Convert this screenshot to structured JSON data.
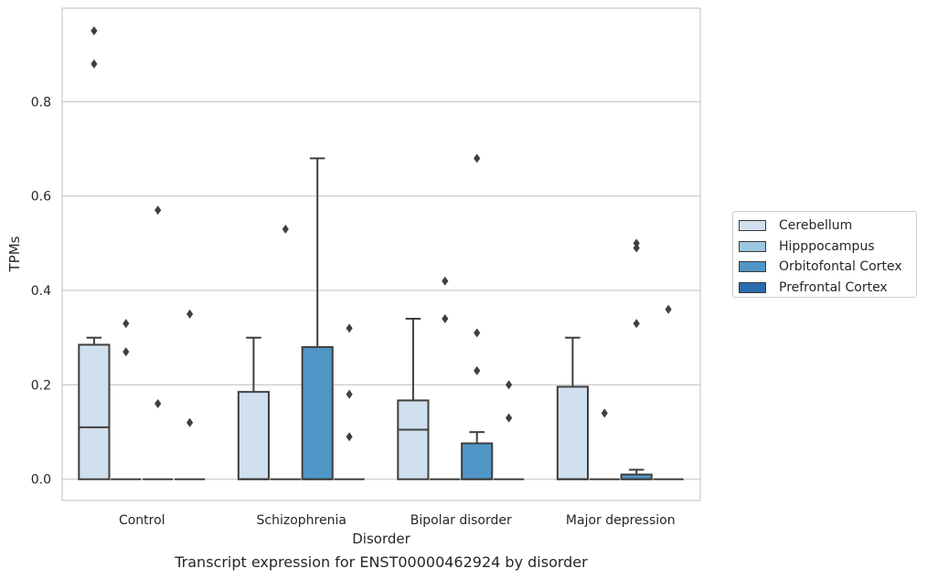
{
  "caption": "Transcript expression for ENST00000462924 by disorder",
  "chart_data": {
    "type": "box",
    "xlabel": "Disorder",
    "ylabel": "TPMs",
    "ylim": [
      -0.045,
      0.998
    ],
    "yticks": [
      0.0,
      0.2,
      0.4,
      0.6,
      0.8
    ],
    "ytick_labels": [
      "0.0",
      "0.2",
      "0.4",
      "0.6",
      "0.8"
    ],
    "grid": "horizontal",
    "legend_position": "right",
    "categories": [
      "Control",
      "Schizophrenia",
      "Bipolar disorder",
      "Major depression"
    ],
    "series": [
      {
        "name": "Cerebellum",
        "color": "#d1e0ef"
      },
      {
        "name": "Hipppocampus",
        "color": "#9ac8e0"
      },
      {
        "name": "Orbitofontal Cortex",
        "color": "#5096c6"
      },
      {
        "name": "Prefrontal Cortex",
        "color": "#2a6aad"
      }
    ],
    "boxes": [
      {
        "category": 0,
        "series": 0,
        "q1": 0.0,
        "median": 0.11,
        "q3": 0.285,
        "whisker_low": 0.0,
        "whisker_high": 0.3,
        "outliers": [
          0.95,
          0.88
        ]
      },
      {
        "category": 0,
        "series": 1,
        "q1": 0.0,
        "median": 0.0,
        "q3": 0.0,
        "whisker_low": 0.0,
        "whisker_high": 0.0,
        "outliers": [
          0.33,
          0.27
        ]
      },
      {
        "category": 0,
        "series": 2,
        "q1": 0.0,
        "median": 0.0,
        "q3": 0.0,
        "whisker_low": 0.0,
        "whisker_high": 0.0,
        "outliers": [
          0.57,
          0.16
        ]
      },
      {
        "category": 0,
        "series": 3,
        "q1": 0.0,
        "median": 0.0,
        "q3": 0.0,
        "whisker_low": 0.0,
        "whisker_high": 0.0,
        "outliers": [
          0.35,
          0.12
        ]
      },
      {
        "category": 1,
        "series": 0,
        "q1": 0.0,
        "median": 0.0,
        "q3": 0.185,
        "whisker_low": 0.0,
        "whisker_high": 0.3,
        "outliers": []
      },
      {
        "category": 1,
        "series": 1,
        "q1": 0.0,
        "median": 0.0,
        "q3": 0.0,
        "whisker_low": 0.0,
        "whisker_high": 0.0,
        "outliers": [
          0.53
        ]
      },
      {
        "category": 1,
        "series": 2,
        "q1": 0.0,
        "median": 0.0,
        "q3": 0.28,
        "whisker_low": 0.0,
        "whisker_high": 0.68,
        "outliers": []
      },
      {
        "category": 1,
        "series": 3,
        "q1": 0.0,
        "median": 0.0,
        "q3": 0.0,
        "whisker_low": 0.0,
        "whisker_high": 0.0,
        "outliers": [
          0.32,
          0.18,
          0.09
        ]
      },
      {
        "category": 2,
        "series": 0,
        "q1": 0.0,
        "median": 0.105,
        "q3": 0.167,
        "whisker_low": 0.0,
        "whisker_high": 0.34,
        "outliers": []
      },
      {
        "category": 2,
        "series": 1,
        "q1": 0.0,
        "median": 0.0,
        "q3": 0.0,
        "whisker_low": 0.0,
        "whisker_high": 0.0,
        "outliers": [
          0.42,
          0.34
        ]
      },
      {
        "category": 2,
        "series": 2,
        "q1": 0.0,
        "median": 0.0,
        "q3": 0.076,
        "whisker_low": 0.0,
        "whisker_high": 0.1,
        "outliers": [
          0.68,
          0.31,
          0.23
        ]
      },
      {
        "category": 2,
        "series": 3,
        "q1": 0.0,
        "median": 0.0,
        "q3": 0.0,
        "whisker_low": 0.0,
        "whisker_high": 0.0,
        "outliers": [
          0.2,
          0.13
        ]
      },
      {
        "category": 3,
        "series": 0,
        "q1": 0.0,
        "median": 0.0,
        "q3": 0.196,
        "whisker_low": 0.0,
        "whisker_high": 0.3,
        "outliers": []
      },
      {
        "category": 3,
        "series": 1,
        "q1": 0.0,
        "median": 0.0,
        "q3": 0.0,
        "whisker_low": 0.0,
        "whisker_high": 0.0,
        "outliers": [
          0.14
        ]
      },
      {
        "category": 3,
        "series": 2,
        "q1": 0.0,
        "median": 0.0,
        "q3": 0.01,
        "whisker_low": 0.0,
        "whisker_high": 0.02,
        "outliers": [
          0.5,
          0.49,
          0.33
        ]
      },
      {
        "category": 3,
        "series": 3,
        "q1": 0.0,
        "median": 0.0,
        "q3": 0.0,
        "whisker_low": 0.0,
        "whisker_high": 0.0,
        "outliers": [
          0.36
        ]
      }
    ]
  }
}
